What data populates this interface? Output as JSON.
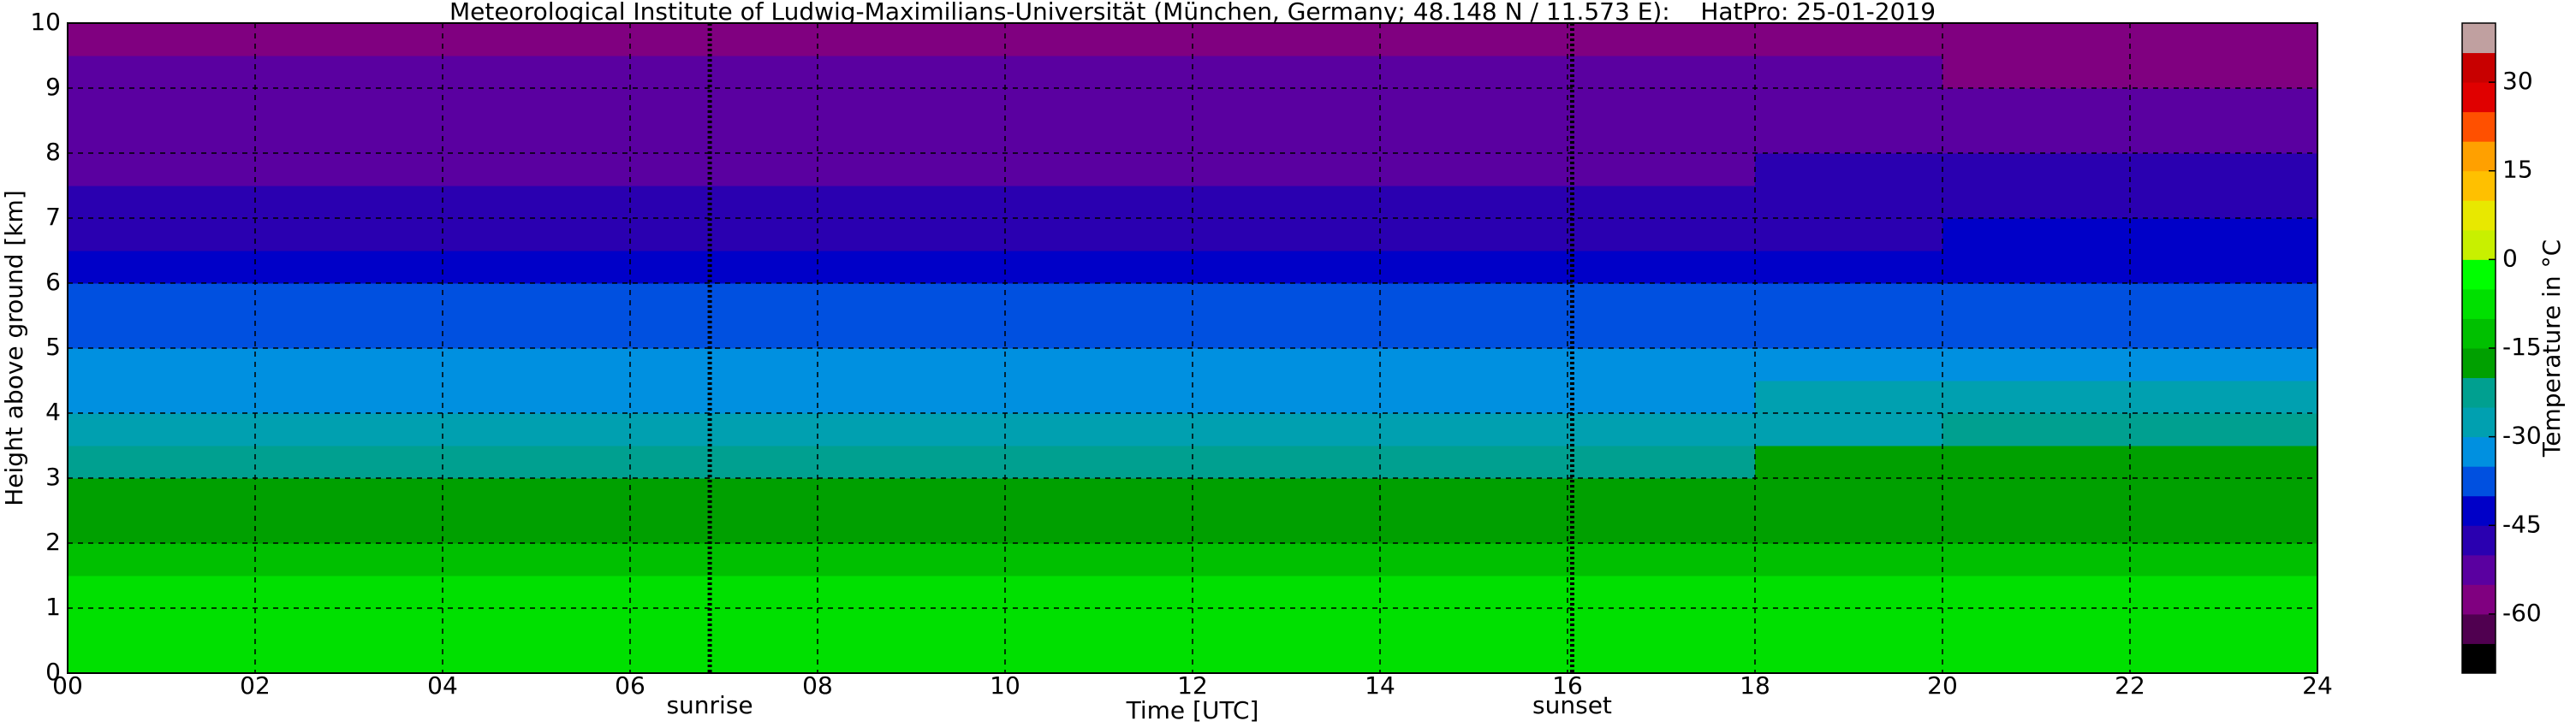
{
  "chart_data": {
    "type": "heatmap",
    "title": "Meteorological Institute of Ludwig-Maximilians-Universität (München, Germany; 48.148 N / 11.573 E):    HatPro: 25-01-2019",
    "xlabel": "Time [UTC]",
    "ylabel": "Height above ground [km]",
    "colorbar_label": "Temperature in °C",
    "xlim": [
      0,
      24
    ],
    "ylim": [
      0,
      10
    ],
    "xticks": [
      {
        "value": 0,
        "label": "00"
      },
      {
        "value": 2,
        "label": "02"
      },
      {
        "value": 4,
        "label": "04"
      },
      {
        "value": 6,
        "label": "06"
      },
      {
        "value": 8,
        "label": "08"
      },
      10,
      12,
      14,
      16,
      18,
      20,
      22,
      24
    ],
    "yticks": [
      0,
      1,
      2,
      3,
      4,
      5,
      6,
      7,
      8,
      9,
      10
    ],
    "grid": true,
    "x_edges": [
      0,
      2,
      4,
      6,
      8,
      10,
      12,
      14,
      16,
      18,
      20,
      22,
      24
    ],
    "y_edges": [
      0,
      0.5,
      1,
      1.5,
      2,
      2.5,
      3,
      3.5,
      4,
      4.5,
      5,
      5.5,
      6,
      6.5,
      7,
      7.5,
      8,
      8.5,
      9,
      9.5,
      10
    ],
    "values": [
      [
        -6,
        -6,
        -6,
        -6,
        -6,
        -6,
        -6,
        -6,
        -6,
        -6,
        -6,
        -6
      ],
      [
        -8,
        -8,
        -8,
        -8,
        -8,
        -8,
        -8,
        -8,
        -8,
        -8,
        -8,
        -8
      ],
      [
        -10,
        -10,
        -10,
        -10,
        -10,
        -10,
        -10,
        -10,
        -10,
        -10,
        -10,
        -10
      ],
      [
        -12,
        -12,
        -12,
        -12,
        -12,
        -12,
        -12,
        -12,
        -12,
        -12,
        -12,
        -12
      ],
      [
        -16,
        -16,
        -16,
        -16,
        -16,
        -16,
        -16,
        -16,
        -16,
        -16,
        -16,
        -16
      ],
      [
        -19,
        -19,
        -19,
        -19,
        -19,
        -19,
        -19,
        -18,
        -18,
        -18,
        -17,
        -17
      ],
      [
        -24,
        -24,
        -24,
        -24,
        -24,
        -24,
        -24,
        -23,
        -22,
        -20,
        -19,
        -19
      ],
      [
        -28,
        -28,
        -28,
        -28,
        -28,
        -28,
        -28,
        -28,
        -27,
        -26,
        -24,
        -22
      ],
      [
        -31,
        -31,
        -31,
        -31,
        -31,
        -31,
        -31,
        -31,
        -31,
        -30,
        -28,
        -27
      ],
      [
        -34,
        -34,
        -34,
        -34,
        -34,
        -34,
        -34,
        -34,
        -34,
        -33,
        -32,
        -32
      ],
      [
        -37,
        -37,
        -37,
        -37,
        -37,
        -37,
        -37,
        -37,
        -37,
        -36,
        -36,
        -36
      ],
      [
        -40,
        -40,
        -40,
        -40,
        -40,
        -40,
        -40,
        -40,
        -40,
        -40,
        -39,
        -39
      ],
      [
        -43,
        -43,
        -43,
        -43,
        -43,
        -43,
        -43,
        -43,
        -42,
        -42,
        -42,
        -42
      ],
      [
        -47,
        -47,
        -47,
        -47,
        -47,
        -47,
        -47,
        -46,
        -46,
        -46,
        -45,
        -45
      ],
      [
        -50,
        -50,
        -50,
        -50,
        -50,
        -50,
        -50,
        -49,
        -49,
        -48,
        -46,
        -46
      ],
      [
        -51,
        -51,
        -51,
        -51,
        -51,
        -51,
        -51,
        -51,
        -51,
        -50,
        -49,
        -48
      ],
      [
        -52,
        -52,
        -52,
        -52,
        -52,
        -52,
        -52,
        -52,
        -52,
        -52,
        -52,
        -52
      ],
      [
        -53,
        -53,
        -53,
        -53,
        -53,
        -53,
        -53,
        -53,
        -53,
        -53,
        -54,
        -55
      ],
      [
        -54,
        -54,
        -54,
        -54,
        -54,
        -54,
        -54,
        -54,
        -54,
        -55,
        -56,
        -58
      ],
      [
        -56,
        -56,
        -56,
        -56,
        -56,
        -56,
        -56,
        -56,
        -56,
        -57,
        -58,
        -60
      ]
    ],
    "levels": [
      -70,
      -65,
      -60,
      -55,
      -50,
      -45,
      -40,
      -35,
      -30,
      -25,
      -20,
      -15,
      -10,
      -5,
      0,
      5,
      10,
      15,
      20,
      25,
      30,
      35,
      40
    ],
    "colors": [
      "#000000",
      "#500050",
      "#800080",
      "#5a00a0",
      "#2a00b0",
      "#0000c8",
      "#0050e0",
      "#0090e0",
      "#00a0b0",
      "#00a090",
      "#00a000",
      "#00c000",
      "#00e000",
      "#00ff00",
      "#c8f000",
      "#e8e800",
      "#ffc000",
      "#ffa000",
      "#ff5000",
      "#e00000",
      "#c80000",
      "#c0a0a0"
    ],
    "cticks": [
      -60,
      -45,
      -30,
      -15,
      0,
      15,
      30
    ],
    "annotations": [
      {
        "text": "sunrise",
        "x": 6.85
      },
      {
        "text": "sunset",
        "x": 16.05
      }
    ]
  }
}
